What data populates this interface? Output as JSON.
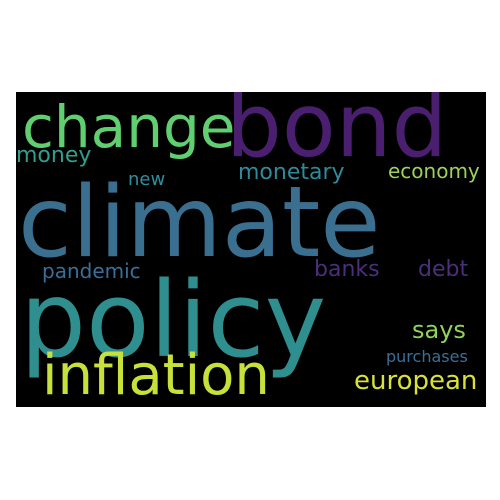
{
  "wordcloud": {
    "background": "#000000",
    "words": {
      "climate": {
        "text": "climate",
        "color": "#3b6f8f"
      },
      "policy": {
        "text": "policy",
        "color": "#2f8f8f"
      },
      "bond": {
        "text": "bond",
        "color": "#4b1f6f"
      },
      "change": {
        "text": "change",
        "color": "#5fcf6f"
      },
      "inflation": {
        "text": "inflation",
        "color": "#c7e13a"
      },
      "money": {
        "text": "money",
        "color": "#2f9f8f"
      },
      "new": {
        "text": "new",
        "color": "#2f8f9f"
      },
      "monetary": {
        "text": "monetary",
        "color": "#2f8a9a"
      },
      "economy": {
        "text": "economy",
        "color": "#9ad35a"
      },
      "pandemic": {
        "text": "pandemic",
        "color": "#3a6f9a"
      },
      "banks": {
        "text": "banks",
        "color": "#4a2f7a"
      },
      "debt": {
        "text": "debt",
        "color": "#4a2f7a"
      },
      "says": {
        "text": "says",
        "color": "#8fd35a"
      },
      "purchases": {
        "text": "purchases",
        "color": "#3a6f9a"
      },
      "european": {
        "text": "european",
        "color": "#d9e13a"
      }
    }
  }
}
